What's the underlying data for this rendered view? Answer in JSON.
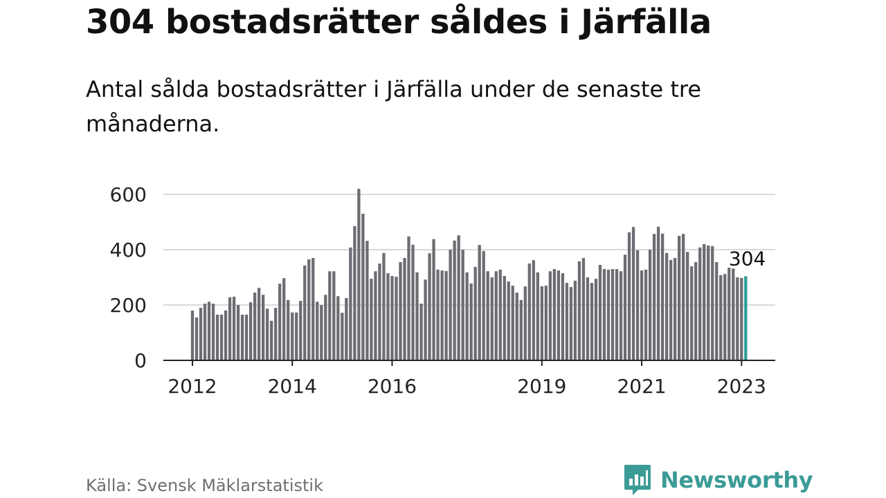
{
  "header": {
    "title": "304 bostadsrätter såldes i Järfälla",
    "subtitle": "Antal sålda bostadsrätter i Järfälla under de senaste tre månaderna."
  },
  "footer": {
    "source": "Källa: Svensk Mäklarstatistik",
    "brand": "Newsworthy",
    "brand_icon": "bar-chart-speech-bubble-icon"
  },
  "colors": {
    "bar": "#6e6c73",
    "highlight": "#2a9d96",
    "grid": "#d9d9d9",
    "axis": "#222222",
    "brand": "#3b9b96"
  },
  "chart_data": {
    "type": "bar",
    "x_unit": "month",
    "start": "2012-01",
    "end": "2023-02",
    "ylim": [
      0,
      620
    ],
    "yticks": [
      0,
      200,
      400,
      600
    ],
    "xticks": [
      {
        "label": "2012",
        "date": "2012-01"
      },
      {
        "label": "2014",
        "date": "2014-01"
      },
      {
        "label": "2016",
        "date": "2016-01"
      },
      {
        "label": "2019",
        "date": "2019-01"
      },
      {
        "label": "2021",
        "date": "2021-01"
      },
      {
        "label": "2023",
        "date": "2023-01"
      }
    ],
    "grid": true,
    "values": [
      180,
      155,
      190,
      205,
      212,
      205,
      165,
      165,
      180,
      228,
      230,
      200,
      165,
      165,
      210,
      245,
      262,
      237,
      187,
      143,
      190,
      277,
      297,
      218,
      173,
      173,
      215,
      343,
      365,
      370,
      212,
      200,
      237,
      322,
      322,
      232,
      172,
      225,
      408,
      485,
      620,
      530,
      432,
      295,
      322,
      350,
      388,
      315,
      305,
      302,
      355,
      370,
      448,
      418,
      318,
      205,
      292,
      387,
      438,
      328,
      325,
      323,
      400,
      433,
      452,
      400,
      318,
      278,
      338,
      417,
      395,
      322,
      300,
      322,
      328,
      305,
      285,
      270,
      245,
      218,
      267,
      350,
      362,
      318,
      268,
      270,
      322,
      330,
      325,
      315,
      280,
      265,
      288,
      358,
      370,
      300,
      280,
      295,
      345,
      330,
      328,
      330,
      330,
      322,
      382,
      463,
      482,
      398,
      325,
      328,
      400,
      457,
      483,
      458,
      388,
      363,
      370,
      450,
      457,
      392,
      340,
      355,
      408,
      420,
      415,
      413,
      355,
      308,
      312,
      335,
      332,
      300,
      298,
      304
    ],
    "highlight_index": 133,
    "highlight_label": "304"
  }
}
